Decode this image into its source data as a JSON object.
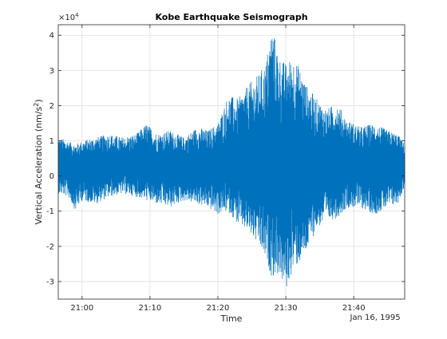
{
  "chart_data": {
    "type": "line",
    "title": "Kobe Earthquake Seismograph",
    "xlabel": "Time",
    "ylabel_main": "Vertical Acceleration (nm/s",
    "ylabel_sup": "2",
    "ylabel_tail": ")",
    "date_label": "Jan 16, 1995",
    "exponent_base": "×10",
    "exponent_power": "4",
    "grid": true,
    "series_color": "#0072bd",
    "x_unit": "minutes after 20:00",
    "xlim": [
      56.5,
      107.5
    ],
    "ylim": [
      -3.5,
      4.3
    ],
    "x_ticks": [
      {
        "value": 60,
        "label": "21:00"
      },
      {
        "value": 70,
        "label": "21:10"
      },
      {
        "value": 80,
        "label": "21:20"
      },
      {
        "value": 90,
        "label": "21:30"
      },
      {
        "value": 100,
        "label": "21:40"
      }
    ],
    "y_ticks": [
      {
        "value": -3,
        "label": "-3"
      },
      {
        "value": -2,
        "label": "-2"
      },
      {
        "value": -1,
        "label": "-1"
      },
      {
        "value": 0,
        "label": "0"
      },
      {
        "value": 1,
        "label": "1"
      },
      {
        "value": 2,
        "label": "2"
      },
      {
        "value": 3,
        "label": "3"
      },
      {
        "value": 4,
        "label": "4"
      }
    ],
    "envelope": [
      {
        "t": 56.5,
        "max": 1.1,
        "min": -0.5
      },
      {
        "t": 58,
        "max": 1.0,
        "min": -0.6
      },
      {
        "t": 59,
        "max": 0.9,
        "min": -1.0
      },
      {
        "t": 60,
        "max": 1.0,
        "min": -0.7
      },
      {
        "t": 62,
        "max": 1.1,
        "min": -0.8
      },
      {
        "t": 64,
        "max": 1.2,
        "min": -0.6
      },
      {
        "t": 66,
        "max": 1.1,
        "min": -0.5
      },
      {
        "t": 68,
        "max": 1.2,
        "min": -0.6
      },
      {
        "t": 69.5,
        "max": 1.5,
        "min": -0.7
      },
      {
        "t": 71,
        "max": 1.2,
        "min": -0.8
      },
      {
        "t": 73,
        "max": 1.3,
        "min": -0.9
      },
      {
        "t": 75,
        "max": 1.1,
        "min": -0.7
      },
      {
        "t": 77,
        "max": 1.4,
        "min": -0.8
      },
      {
        "t": 78.5,
        "max": 1.3,
        "min": -0.9
      },
      {
        "t": 80,
        "max": 1.5,
        "min": -1.1
      },
      {
        "t": 81.5,
        "max": 2.3,
        "min": -1.0
      },
      {
        "t": 83,
        "max": 2.2,
        "min": -1.4
      },
      {
        "t": 84.5,
        "max": 2.6,
        "min": -1.6
      },
      {
        "t": 86,
        "max": 2.9,
        "min": -2.0
      },
      {
        "t": 87,
        "max": 3.2,
        "min": -2.4
      },
      {
        "t": 88,
        "max": 4.3,
        "min": -2.9
      },
      {
        "t": 89,
        "max": 3.4,
        "min": -2.8
      },
      {
        "t": 90,
        "max": 3.2,
        "min": -3.3
      },
      {
        "t": 91,
        "max": 3.4,
        "min": -2.7
      },
      {
        "t": 92,
        "max": 3.1,
        "min": -2.5
      },
      {
        "t": 93,
        "max": 2.6,
        "min": -2.2
      },
      {
        "t": 94.5,
        "max": 2.2,
        "min": -1.5
      },
      {
        "t": 96,
        "max": 1.9,
        "min": -1.3
      },
      {
        "t": 97.5,
        "max": 2.1,
        "min": -1.2
      },
      {
        "t": 99,
        "max": 1.6,
        "min": -0.9
      },
      {
        "t": 101,
        "max": 1.4,
        "min": -0.9
      },
      {
        "t": 103,
        "max": 1.5,
        "min": -1.1
      },
      {
        "t": 105,
        "max": 1.3,
        "min": -0.9
      },
      {
        "t": 106.5,
        "max": 1.2,
        "min": -0.8
      },
      {
        "t": 107.5,
        "max": 0.9,
        "min": -0.3
      }
    ],
    "baseline": 0.3
  }
}
